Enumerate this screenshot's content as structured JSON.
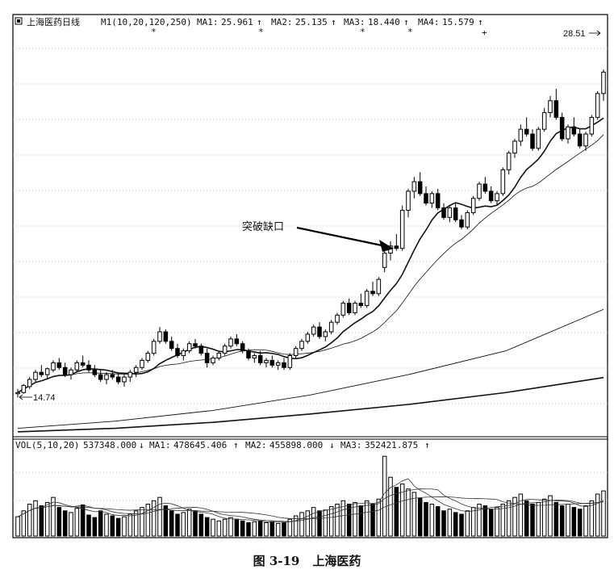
{
  "figure": {
    "number": "图 3-19",
    "title": "上海医药"
  },
  "chart_data": [
    {
      "type": "candlestick",
      "header": {
        "name": "上海医药日线",
        "params": "M1(10,20,120,250)",
        "ma": [
          {
            "label": "MA1:",
            "value": "25.961",
            "arrow": "↑"
          },
          {
            "label": "MA2:",
            "value": "25.135",
            "arrow": "↑"
          },
          {
            "label": "MA3:",
            "value": "18.440",
            "arrow": "↑"
          },
          {
            "label": "MA4:",
            "value": "15.579",
            "arrow": "↑"
          }
        ]
      },
      "y_range": [
        13.4,
        29.8
      ],
      "high_label": "28.51",
      "high_value": 28.51,
      "low_label": "14.74",
      "low_value": 14.74,
      "annotation": "突破缺口",
      "candles": [
        [
          14.9,
          15.1,
          14.74,
          14.95
        ],
        [
          14.95,
          15.3,
          14.9,
          15.25
        ],
        [
          15.2,
          15.6,
          15.1,
          15.5
        ],
        [
          15.5,
          15.9,
          15.4,
          15.8
        ],
        [
          15.8,
          16.1,
          15.6,
          15.7
        ],
        [
          15.7,
          16.0,
          15.5,
          15.95
        ],
        [
          15.9,
          16.3,
          15.8,
          16.2
        ],
        [
          16.2,
          16.4,
          15.9,
          16.0
        ],
        [
          16.0,
          16.2,
          15.6,
          15.7
        ],
        [
          15.7,
          16.0,
          15.5,
          15.9
        ],
        [
          15.9,
          16.3,
          15.8,
          16.2
        ],
        [
          16.2,
          16.5,
          16.0,
          16.1
        ],
        [
          16.1,
          16.3,
          15.8,
          15.9
        ],
        [
          15.9,
          16.1,
          15.6,
          15.7
        ],
        [
          15.7,
          15.9,
          15.4,
          15.5
        ],
        [
          15.5,
          15.8,
          15.3,
          15.7
        ],
        [
          15.7,
          15.9,
          15.5,
          15.6
        ],
        [
          15.6,
          15.8,
          15.3,
          15.4
        ],
        [
          15.4,
          15.7,
          15.2,
          15.6
        ],
        [
          15.6,
          15.9,
          15.4,
          15.8
        ],
        [
          15.8,
          16.1,
          15.6,
          16.0
        ],
        [
          16.0,
          16.4,
          15.9,
          16.3
        ],
        [
          16.3,
          16.7,
          16.2,
          16.6
        ],
        [
          16.6,
          17.2,
          16.5,
          17.1
        ],
        [
          17.1,
          17.7,
          17.0,
          17.5
        ],
        [
          17.5,
          17.6,
          17.0,
          17.1
        ],
        [
          17.1,
          17.3,
          16.7,
          16.8
        ],
        [
          16.8,
          17.0,
          16.4,
          16.5
        ],
        [
          16.5,
          16.8,
          16.3,
          16.7
        ],
        [
          16.7,
          17.1,
          16.6,
          17.0
        ],
        [
          17.0,
          17.2,
          16.8,
          16.9
        ],
        [
          16.9,
          17.0,
          16.5,
          16.6
        ],
        [
          16.6,
          16.8,
          16.0,
          16.2
        ],
        [
          16.2,
          16.5,
          16.1,
          16.4
        ],
        [
          16.4,
          16.7,
          16.3,
          16.6
        ],
        [
          16.6,
          17.0,
          16.5,
          16.9
        ],
        [
          16.9,
          17.3,
          16.8,
          17.2
        ],
        [
          17.2,
          17.4,
          16.9,
          17.0
        ],
        [
          17.0,
          17.1,
          16.6,
          16.7
        ],
        [
          16.7,
          16.8,
          16.3,
          16.4
        ],
        [
          16.4,
          16.6,
          16.2,
          16.5
        ],
        [
          16.5,
          16.7,
          16.1,
          16.2
        ],
        [
          16.2,
          16.4,
          16.0,
          16.3
        ],
        [
          16.3,
          16.5,
          16.0,
          16.1
        ],
        [
          16.1,
          16.3,
          15.9,
          16.2
        ],
        [
          16.2,
          16.4,
          15.9,
          16.0
        ],
        [
          16.0,
          16.6,
          15.9,
          16.5
        ],
        [
          16.5,
          16.9,
          16.4,
          16.8
        ],
        [
          16.8,
          17.2,
          16.7,
          17.1
        ],
        [
          17.1,
          17.5,
          17.0,
          17.4
        ],
        [
          17.4,
          17.8,
          17.3,
          17.7
        ],
        [
          17.7,
          17.9,
          17.2,
          17.3
        ],
        [
          17.3,
          17.6,
          17.1,
          17.5
        ],
        [
          17.5,
          18.0,
          17.4,
          17.9
        ],
        [
          17.9,
          18.3,
          17.8,
          18.2
        ],
        [
          18.2,
          18.8,
          18.1,
          18.7
        ],
        [
          18.7,
          18.9,
          18.2,
          18.3
        ],
        [
          18.3,
          18.8,
          18.2,
          18.7
        ],
        [
          18.7,
          19.1,
          18.5,
          18.6
        ],
        [
          18.6,
          19.3,
          18.5,
          19.2
        ],
        [
          19.2,
          19.6,
          19.0,
          19.1
        ],
        [
          19.1,
          19.8,
          19.0,
          19.7
        ],
        [
          20.2,
          21.0,
          20.0,
          20.8
        ],
        [
          20.8,
          21.3,
          20.5,
          21.1
        ],
        [
          21.1,
          21.6,
          20.9,
          21.0
        ],
        [
          21.0,
          22.8,
          20.9,
          22.6
        ],
        [
          22.6,
          23.5,
          22.3,
          23.4
        ],
        [
          23.4,
          24.0,
          23.1,
          23.8
        ],
        [
          23.8,
          24.2,
          23.2,
          23.3
        ],
        [
          23.3,
          23.6,
          22.8,
          22.9
        ],
        [
          22.9,
          23.4,
          22.7,
          23.3
        ],
        [
          23.3,
          23.5,
          22.6,
          22.7
        ],
        [
          22.7,
          22.9,
          22.2,
          22.3
        ],
        [
          22.3,
          22.8,
          22.1,
          22.7
        ],
        [
          22.7,
          22.9,
          22.1,
          22.2
        ],
        [
          22.2,
          22.4,
          21.8,
          21.9
        ],
        [
          21.9,
          22.6,
          21.8,
          22.5
        ],
        [
          22.5,
          23.2,
          22.4,
          23.1
        ],
        [
          23.1,
          23.8,
          23.0,
          23.7
        ],
        [
          23.7,
          24.0,
          23.3,
          23.4
        ],
        [
          23.4,
          23.6,
          22.9,
          23.0
        ],
        [
          23.0,
          23.4,
          22.8,
          23.3
        ],
        [
          23.3,
          24.4,
          23.2,
          24.3
        ],
        [
          24.3,
          25.1,
          24.1,
          25.0
        ],
        [
          25.0,
          25.6,
          24.8,
          25.5
        ],
        [
          25.5,
          26.2,
          25.3,
          26.0
        ],
        [
          26.0,
          26.5,
          25.7,
          25.8
        ],
        [
          25.8,
          26.0,
          25.1,
          25.2
        ],
        [
          25.2,
          26.1,
          25.1,
          26.0
        ],
        [
          26.0,
          26.9,
          25.9,
          26.7
        ],
        [
          26.7,
          27.4,
          26.5,
          27.2
        ],
        [
          27.2,
          27.7,
          26.4,
          26.5
        ],
        [
          26.5,
          26.7,
          25.5,
          25.6
        ],
        [
          25.6,
          26.2,
          25.4,
          26.1
        ],
        [
          26.1,
          26.5,
          25.7,
          25.8
        ],
        [
          25.8,
          26.0,
          25.2,
          25.3
        ],
        [
          25.3,
          25.9,
          25.1,
          25.8
        ],
        [
          25.8,
          26.6,
          25.7,
          26.5
        ],
        [
          26.5,
          27.6,
          26.4,
          27.5
        ],
        [
          27.5,
          28.51,
          27.2,
          28.4
        ]
      ],
      "moving_averages": [
        {
          "name": "MA1",
          "period": 10,
          "style": "thick"
        },
        {
          "name": "MA2",
          "period": 20,
          "style": "thin"
        },
        {
          "name": "MA3",
          "period": 120,
          "style": "thin",
          "values": [
            13.45,
            13.75,
            14.2,
            14.85,
            15.7,
            16.7,
            18.44
          ]
        },
        {
          "name": "MA4",
          "period": 250,
          "style": "thick",
          "values": [
            13.3,
            13.45,
            13.7,
            14.05,
            14.45,
            14.95,
            15.58
          ]
        }
      ]
    },
    {
      "type": "bar",
      "header": {
        "params": "VOL(5,10,20)",
        "current_value": "537348.000",
        "current_arrow": "↓",
        "ma": [
          {
            "label": "MA1:",
            "value": "478645.406",
            "arrow": "↑"
          },
          {
            "label": "MA2:",
            "value": "455898.000",
            "arrow": "↓"
          },
          {
            "label": "MA3:",
            "value": "352421.875",
            "arrow": "↑"
          }
        ]
      },
      "y_range": [
        0,
        1000000
      ],
      "volumes": [
        230000,
        300000,
        380000,
        420000,
        360000,
        400000,
        460000,
        340000,
        300000,
        280000,
        330000,
        370000,
        250000,
        220000,
        300000,
        260000,
        240000,
        210000,
        230000,
        260000,
        300000,
        340000,
        380000,
        420000,
        460000,
        360000,
        300000,
        260000,
        280000,
        320000,
        300000,
        260000,
        220000,
        200000,
        180000,
        200000,
        220000,
        200000,
        180000,
        160000,
        170000,
        180000,
        160000,
        170000,
        150000,
        160000,
        200000,
        240000,
        280000,
        300000,
        340000,
        300000,
        310000,
        350000,
        380000,
        420000,
        380000,
        400000,
        360000,
        420000,
        380000,
        440000,
        950000,
        700000,
        580000,
        620000,
        560000,
        520000,
        450000,
        400000,
        380000,
        350000,
        300000,
        320000,
        280000,
        260000,
        300000,
        340000,
        380000,
        360000,
        320000,
        340000,
        380000,
        420000,
        460000,
        500000,
        420000,
        380000,
        400000,
        440000,
        480000,
        400000,
        360000,
        380000,
        340000,
        320000,
        360000,
        420000,
        500000,
        537348
      ]
    }
  ]
}
